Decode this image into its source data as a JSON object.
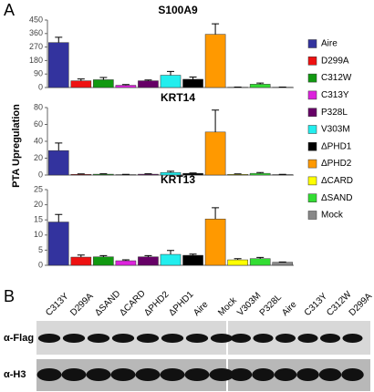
{
  "panel_labels": [
    "A",
    "B"
  ],
  "y_label": "PTA Upregulation",
  "legend": {
    "names": [
      "Aire",
      "D299A",
      "C312W",
      "C313Y",
      "P328L",
      "V303M",
      "ΔPHD1",
      "ΔPHD2",
      "ΔCARD",
      "ΔSAND",
      "Mock"
    ],
    "colors": [
      "#33339e",
      "#ee1111",
      "#119911",
      "#dd22dd",
      "#660066",
      "#22eeee",
      "#000000",
      "#ff9900",
      "#ffff00",
      "#33dd33",
      "#888888"
    ]
  },
  "chart_data": [
    {
      "type": "bar",
      "title": "S100A9",
      "values": [
        300,
        45,
        52,
        15,
        45,
        82,
        55,
        355,
        2,
        22,
        2
      ],
      "errors": [
        35,
        12,
        15,
        5,
        5,
        25,
        15,
        70,
        1,
        8,
        1
      ],
      "ylim": [
        0,
        450
      ],
      "yticks": [
        0,
        90,
        180,
        270,
        360,
        450
      ]
    },
    {
      "type": "bar",
      "title": "KRT14",
      "values": [
        29,
        0.8,
        1,
        0.5,
        1,
        3,
        2,
        51,
        0.8,
        2,
        0.5
      ],
      "errors": [
        9,
        0.5,
        0.5,
        0.3,
        0.5,
        1.5,
        0.5,
        26,
        0.5,
        1,
        0.3
      ],
      "ylim": [
        0,
        80
      ],
      "yticks": [
        0,
        20,
        40,
        60,
        80
      ]
    },
    {
      "type": "bar",
      "title": "KRT13",
      "values": [
        14.3,
        2.7,
        2.8,
        1.5,
        2.8,
        3.6,
        3.3,
        15.3,
        1.8,
        2.2,
        1.0
      ],
      "errors": [
        2.5,
        0.7,
        0.4,
        0.3,
        0.4,
        1.3,
        0.4,
        3.7,
        0.4,
        0.4,
        0.1
      ],
      "ylim": [
        0,
        25
      ],
      "yticks": [
        0,
        5,
        10,
        15,
        20,
        25
      ]
    }
  ],
  "blot": {
    "lanes_left": [
      "C313Y",
      "D299A",
      "ΔSAND",
      "ΔCARD",
      "ΔPHD2",
      "ΔPHD1",
      "Aire",
      "Mock"
    ],
    "lanes_right": [
      "V303M",
      "P328L",
      "Aire",
      "C313Y",
      "C312W",
      "D299A"
    ],
    "rows": [
      "α-Flag",
      "α-H3"
    ]
  }
}
